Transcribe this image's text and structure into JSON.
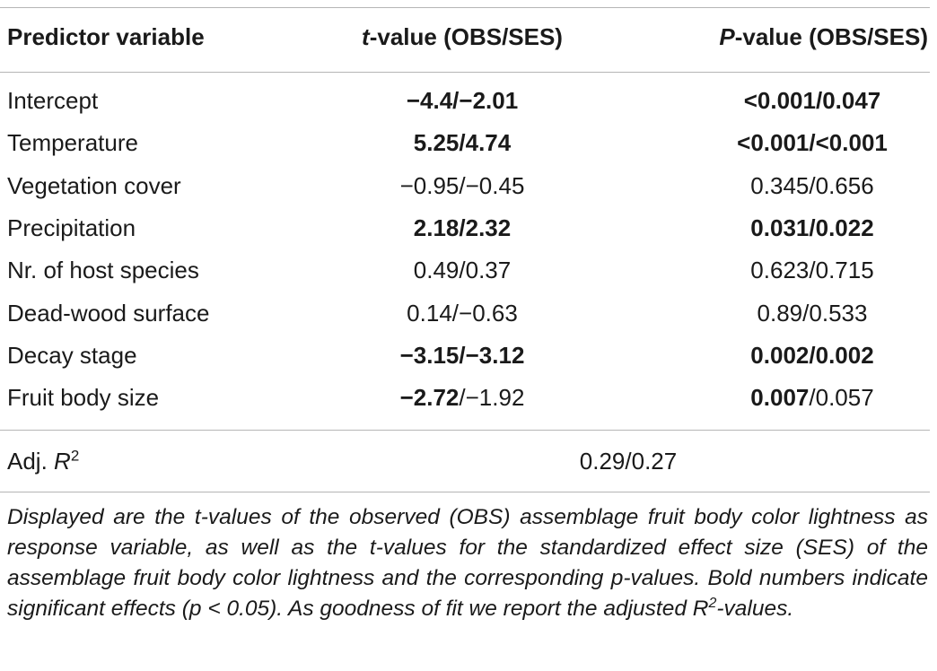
{
  "table": {
    "headers": {
      "predictor": "Predictor variable",
      "t_italic": "t",
      "t_rest": "-value (OBS/SES)",
      "p_italic": "P",
      "p_rest": "-value (OBS/SES)"
    },
    "rows": [
      {
        "predictor": "Intercept",
        "t_obs": "−4.4",
        "t_sep": "/",
        "t_ses": "−2.01",
        "p_obs": "<0.001",
        "p_sep": "/",
        "p_ses": "0.047"
      },
      {
        "predictor": "Temperature",
        "t_obs": "5.25",
        "t_sep": "/",
        "t_ses": "4.74",
        "p_obs": "<0.001",
        "p_sep": "/",
        "p_ses": "<0.001"
      },
      {
        "predictor": "Vegetation cover",
        "t_obs": "−0.95",
        "t_sep": "/",
        "t_ses": "−0.45",
        "p_obs": "0.345",
        "p_sep": "/",
        "p_ses": "0.656"
      },
      {
        "predictor": "Precipitation",
        "t_obs": "2.18",
        "t_sep": "/",
        "t_ses": "2.32",
        "p_obs": "0.031",
        "p_sep": "/",
        "p_ses": "0.022"
      },
      {
        "predictor": "Nr. of host species",
        "t_obs": "0.49",
        "t_sep": "/",
        "t_ses": "0.37",
        "p_obs": "0.623",
        "p_sep": "/",
        "p_ses": "0.715"
      },
      {
        "predictor": "Dead-wood surface",
        "t_obs": "0.14",
        "t_sep": "/",
        "t_ses": "−0.63",
        "p_obs": "0.89",
        "p_sep": "/",
        "p_ses": "0.533"
      },
      {
        "predictor": "Decay stage",
        "t_obs": "−3.15",
        "t_sep": "/",
        "t_ses": "−3.12",
        "p_obs": "0.002",
        "p_sep": "/",
        "p_ses": "0.002"
      },
      {
        "predictor": "Fruit body size",
        "t_obs": "−2.72",
        "t_sep": "/",
        "t_ses": "−1.92",
        "p_obs": "0.007",
        "p_sep": "/",
        "p_ses": "0.057"
      }
    ],
    "adj": {
      "label": "Adj. ",
      "label_italic": "R",
      "label_sup": "2",
      "value": "0.29/0.27"
    }
  },
  "note": {
    "part1": "Displayed are the t-values of the observed (OBS) assemblage fruit body color lightness as response variable, as well as the t-values for the standardized effect size (SES) of the assemblage fruit body color lightness and the corresponding p-values. Bold numbers indicate significant effects (p < 0.05). As goodness of fit we report the adjusted R",
    "sup": "2",
    "part2": "-values."
  }
}
